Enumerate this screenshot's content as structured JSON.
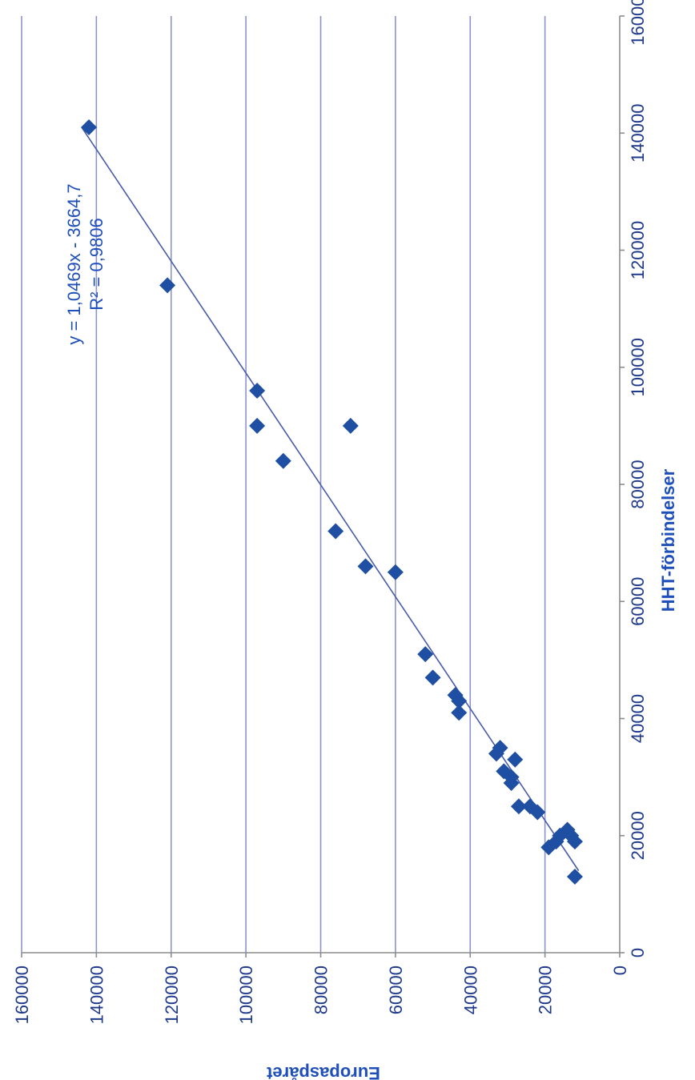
{
  "chart_data": {
    "type": "scatter",
    "orientation": "rotated-90-clockwise",
    "xlabel": "HHT-förbindelser",
    "ylabel": "Europaspåret",
    "xlim": [
      0,
      160000
    ],
    "ylim": [
      0,
      160000
    ],
    "x_ticks": [
      "0",
      "20000",
      "40000",
      "60000",
      "80000",
      "100000",
      "120000",
      "140000",
      "160000"
    ],
    "y_ticks": [
      "0",
      "20000",
      "40000",
      "60000",
      "80000",
      "100000",
      "120000",
      "140000",
      "160000"
    ],
    "grid": "major gridlines on y axis",
    "trendline": {
      "slope": 1.0469,
      "intercept": -3664.7,
      "x_range": [
        14000,
        141000
      ],
      "equation_label": "y = 1,0469x - 3664,7",
      "r2_label": "R² = 0,9806"
    },
    "series": [
      {
        "marker": "diamond",
        "color": "#1f4fa3",
        "points": [
          {
            "x": 141000,
            "y": 142000
          },
          {
            "x": 114000,
            "y": 121000
          },
          {
            "x": 96000,
            "y": 97000
          },
          {
            "x": 90000,
            "y": 97000
          },
          {
            "x": 90000,
            "y": 72000
          },
          {
            "x": 84000,
            "y": 90000
          },
          {
            "x": 72000,
            "y": 76000
          },
          {
            "x": 66000,
            "y": 68000
          },
          {
            "x": 65000,
            "y": 60000
          },
          {
            "x": 51000,
            "y": 52000
          },
          {
            "x": 47000,
            "y": 50000
          },
          {
            "x": 44000,
            "y": 44000
          },
          {
            "x": 43000,
            "y": 43000
          },
          {
            "x": 41000,
            "y": 43000
          },
          {
            "x": 35000,
            "y": 32000
          },
          {
            "x": 34000,
            "y": 33000
          },
          {
            "x": 33000,
            "y": 28000
          },
          {
            "x": 31000,
            "y": 31000
          },
          {
            "x": 30000,
            "y": 29000
          },
          {
            "x": 29000,
            "y": 29000
          },
          {
            "x": 25000,
            "y": 24000
          },
          {
            "x": 25000,
            "y": 27000
          },
          {
            "x": 24000,
            "y": 22000
          },
          {
            "x": 21000,
            "y": 14000
          },
          {
            "x": 20000,
            "y": 16000
          },
          {
            "x": 20000,
            "y": 13000
          },
          {
            "x": 19000,
            "y": 12000
          },
          {
            "x": 19000,
            "y": 17000
          },
          {
            "x": 18000,
            "y": 19000
          },
          {
            "x": 13000,
            "y": 12000
          }
        ]
      }
    ]
  }
}
